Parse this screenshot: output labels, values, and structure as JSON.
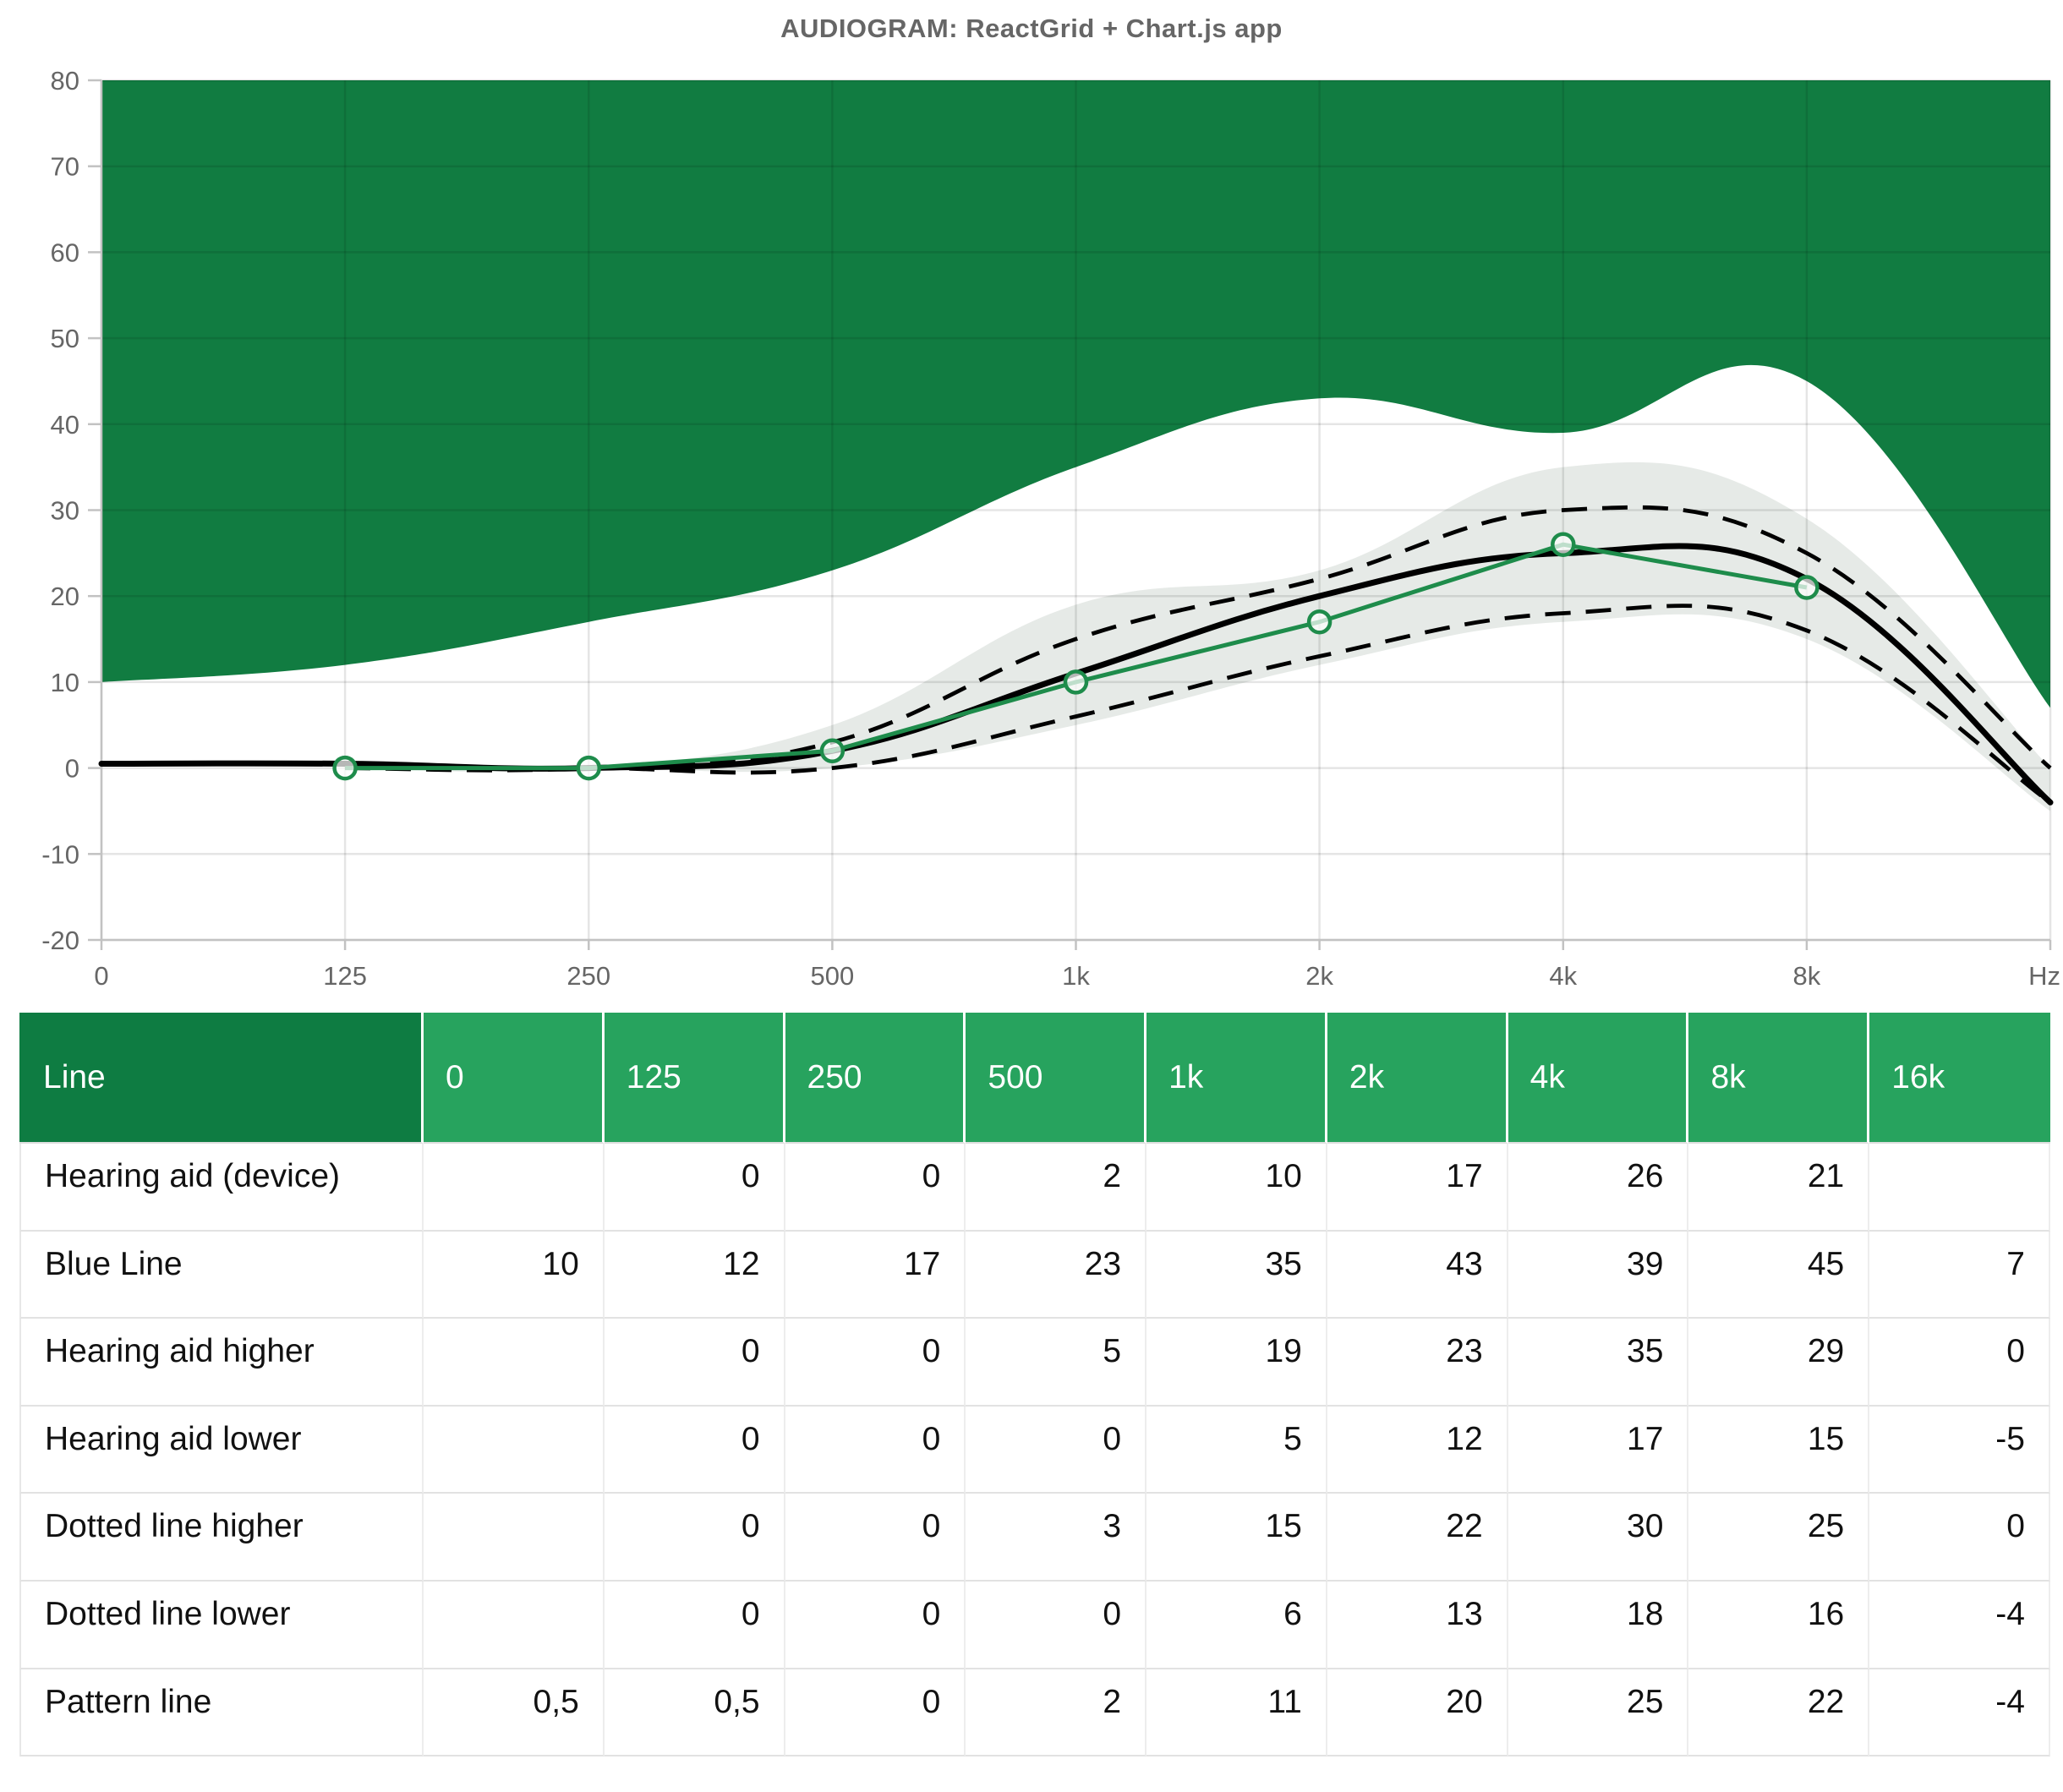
{
  "chart_data": {
    "type": "line",
    "title": "AUDIOGRAM: ReactGrid + Chart.js app",
    "categories": [
      "0",
      "125",
      "250",
      "500",
      "1k",
      "2k",
      "4k",
      "8k",
      "16k"
    ],
    "x_tick_labels": [
      "0",
      "125",
      "250",
      "500",
      "1k",
      "2k",
      "4k",
      "8k",
      "Hz"
    ],
    "xlabel": "Hz",
    "ylabel": "",
    "ylim": [
      -20,
      80
    ],
    "y_ticks": [
      80,
      70,
      60,
      50,
      40,
      30,
      20,
      10,
      0,
      -10,
      -20
    ],
    "grid": true,
    "legend_position": "none",
    "series": [
      {
        "name": "Blue Line",
        "role": "area-fill-to-top",
        "values": [
          10,
          12,
          17,
          23,
          35,
          43,
          39,
          45,
          7
        ]
      },
      {
        "name": "Hearing aid higher",
        "role": "band-upper",
        "values": [
          null,
          0,
          0,
          5,
          19,
          23,
          35,
          29,
          0
        ]
      },
      {
        "name": "Hearing aid lower",
        "role": "band-lower",
        "values": [
          null,
          0,
          0,
          0,
          5,
          12,
          17,
          15,
          -5
        ]
      },
      {
        "name": "Dotted line higher",
        "role": "dashed-line",
        "values": [
          null,
          0,
          0,
          3,
          15,
          22,
          30,
          25,
          0
        ]
      },
      {
        "name": "Dotted line lower",
        "role": "dashed-line",
        "values": [
          null,
          0,
          0,
          0,
          6,
          13,
          18,
          16,
          -4
        ]
      },
      {
        "name": "Pattern line",
        "role": "solid-line",
        "values": [
          0.5,
          0.5,
          0,
          2,
          11,
          20,
          25,
          22,
          -4
        ]
      },
      {
        "name": "Hearing aid (device)",
        "role": "marker-line",
        "values": [
          null,
          0,
          0,
          2,
          10,
          17,
          26,
          21,
          null
        ]
      }
    ]
  },
  "table": {
    "header": [
      "Line",
      "0",
      "125",
      "250",
      "500",
      "1k",
      "2k",
      "4k",
      "8k",
      "16k"
    ],
    "rows": [
      {
        "label": "Hearing aid (device)",
        "values": [
          "",
          "0",
          "0",
          "2",
          "10",
          "17",
          "26",
          "21",
          ""
        ]
      },
      {
        "label": "Blue Line",
        "values": [
          "10",
          "12",
          "17",
          "23",
          "35",
          "43",
          "39",
          "45",
          "7"
        ]
      },
      {
        "label": "Hearing aid higher",
        "values": [
          "",
          "0",
          "0",
          "5",
          "19",
          "23",
          "35",
          "29",
          "0"
        ]
      },
      {
        "label": "Hearing aid lower",
        "values": [
          "",
          "0",
          "0",
          "0",
          "5",
          "12",
          "17",
          "15",
          "-5"
        ]
      },
      {
        "label": "Dotted line higher",
        "values": [
          "",
          "0",
          "0",
          "3",
          "15",
          "22",
          "30",
          "25",
          "0"
        ]
      },
      {
        "label": "Dotted line lower",
        "values": [
          "",
          "0",
          "0",
          "0",
          "6",
          "13",
          "18",
          "16",
          "-4"
        ]
      },
      {
        "label": "Pattern line",
        "values": [
          "0,5",
          "0,5",
          "0",
          "2",
          "11",
          "20",
          "25",
          "22",
          "-4"
        ]
      }
    ]
  },
  "colors": {
    "area_green": "#117c41",
    "device_line_green": "#1e8c4b",
    "band_fill": "rgba(60,95,70,0.13)",
    "line_black": "#000000",
    "grid_overlay": "rgba(0,0,0,0.10)",
    "axis_border": "#c2c2c2",
    "axis_text": "#666666",
    "header_dark_green": "#0e7c42",
    "header_light_green": "#27a35e",
    "title_gray": "#666666"
  }
}
